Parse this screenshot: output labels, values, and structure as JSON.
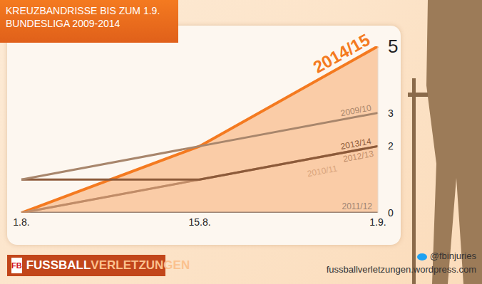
{
  "chart_data": {
    "type": "line",
    "title": "KREUZBANDRISSE BIS ZUM 1.9.",
    "subtitle": "BUNDESLIGA 2009-2014",
    "categories": [
      "1.8.",
      "15.8.",
      "1.9."
    ],
    "series": [
      {
        "name": "2011/12",
        "color": "#9c8474",
        "values": [
          0,
          0,
          0
        ]
      },
      {
        "name": "2010/11",
        "color": "#d9a47c",
        "values": [
          0,
          1,
          2
        ]
      },
      {
        "name": "2012/13",
        "color": "#c08c68",
        "values": [
          0,
          1,
          2
        ]
      },
      {
        "name": "2013/14",
        "color": "#8c5a3a",
        "values": [
          1,
          1,
          2
        ]
      },
      {
        "name": "2009/10",
        "color": "#a8866c",
        "values": [
          1,
          2,
          3
        ]
      },
      {
        "name": "2014/15",
        "color": "#f47a20",
        "type": "area",
        "values": [
          0,
          2,
          5
        ]
      }
    ],
    "ylim": [
      0,
      5
    ],
    "yticks": [
      0,
      2,
      3,
      5
    ],
    "grid": false
  },
  "branding": {
    "badge": "FB",
    "logo": [
      "FUSSBALL",
      "VERLETZUNGEN"
    ],
    "twitter": "@fbinjuries",
    "url": "fussballverletzungen.wordpress.com"
  }
}
